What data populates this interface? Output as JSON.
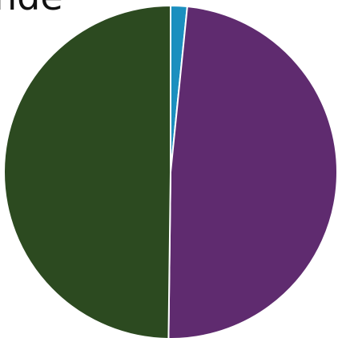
{
  "chart_data": {
    "type": "pie",
    "title": "nde",
    "values": [
      1.6,
      48.6,
      49.8
    ],
    "colors": [
      "#1b8fbf",
      "#5f2b6f",
      "#2c4a20"
    ]
  }
}
